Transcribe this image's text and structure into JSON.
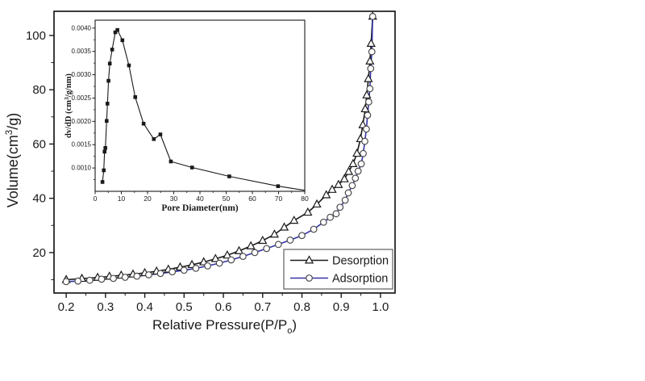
{
  "colors": {
    "background": "#ffffff",
    "axis": "#1a1a1a",
    "text": "#1a1a1a",
    "desorption_line": "#1a1a1a",
    "adsorption_line": "#3333a6",
    "marker_fill": "#ffffff",
    "circle_marker_edge": "#4a4a4a",
    "triangle_marker_edge": "#1a1a1a",
    "inset_series": "#1a1a1a",
    "legend_border": "#6b6b6b"
  },
  "chart_data": [
    {
      "type": "line",
      "role": "main-isotherm",
      "title": "",
      "xlabel": "Relative Pressure(P/Po)",
      "xlabel_parts": {
        "pre": "Relative Pressure(P/P",
        "sub": "o",
        "post": ")"
      },
      "ylabel": "Volume(cm3/g)",
      "ylabel_parts": {
        "pre": "Volume(cm",
        "sup": "3",
        "post": "/g)"
      },
      "xlim": [
        0.169,
        1.037
      ],
      "ylim": [
        5.1,
        108.9
      ],
      "xticks": [
        0.2,
        0.3,
        0.4,
        0.5,
        0.6,
        0.7,
        0.8,
        0.9,
        1.0
      ],
      "xtick_labels": [
        "0.2",
        "0.3",
        "0.4",
        "0.5",
        "0.6",
        "0.7",
        "0.8",
        "0.9",
        "1.0"
      ],
      "x_minor_ticks": [
        0.25,
        0.35,
        0.45,
        0.55,
        0.65,
        0.75,
        0.85,
        0.95
      ],
      "yticks": [
        20,
        40,
        60,
        80,
        100
      ],
      "ytick_labels": [
        "20",
        "40",
        "60",
        "80",
        "100"
      ],
      "y_minor_ticks": [
        10,
        30,
        50,
        70,
        90
      ],
      "grid": false,
      "legend": {
        "position": "bottom-right",
        "entries": [
          {
            "label": "Desorption",
            "marker": "triangle",
            "color": "#1a1a1a",
            "marker_edge": "#1a1a1a"
          },
          {
            "label": "Adsorption",
            "marker": "circle",
            "color": "#3333a6",
            "marker_edge": "#4a4a4a"
          }
        ]
      },
      "series": [
        {
          "name": "Desorption",
          "marker": "triangle",
          "color": "#1a1a1a",
          "marker_edge": "#1a1a1a",
          "points": [
            [
              0.2,
              10.0
            ],
            [
              0.24,
              10.4
            ],
            [
              0.28,
              10.8
            ],
            [
              0.31,
              11.2
            ],
            [
              0.34,
              11.6
            ],
            [
              0.37,
              12.0
            ],
            [
              0.4,
              12.5
            ],
            [
              0.43,
              13.1
            ],
            [
              0.46,
              13.8
            ],
            [
              0.49,
              14.6
            ],
            [
              0.52,
              15.5
            ],
            [
              0.55,
              16.5
            ],
            [
              0.58,
              17.7
            ],
            [
              0.61,
              19.0
            ],
            [
              0.64,
              20.6
            ],
            [
              0.67,
              22.4
            ],
            [
              0.7,
              24.4
            ],
            [
              0.73,
              26.7
            ],
            [
              0.755,
              29.3
            ],
            [
              0.78,
              31.8
            ],
            [
              0.815,
              34.8
            ],
            [
              0.838,
              37.8
            ],
            [
              0.862,
              41.2
            ],
            [
              0.877,
              43.2
            ],
            [
              0.893,
              45.0
            ],
            [
              0.908,
              47.1
            ],
            [
              0.919,
              49.8
            ],
            [
              0.93,
              52.7
            ],
            [
              0.94,
              56.5
            ],
            [
              0.949,
              61.9
            ],
            [
              0.955,
              67.0
            ],
            [
              0.961,
              72.9
            ],
            [
              0.965,
              78.0
            ],
            [
              0.969,
              84.0
            ],
            [
              0.973,
              90.5
            ],
            [
              0.976,
              97.0
            ],
            [
              0.98,
              107.0
            ]
          ]
        },
        {
          "name": "Adsorption",
          "marker": "circle",
          "color": "#3333a6",
          "marker_edge": "#4a4a4a",
          "points": [
            [
              0.2,
              9.3
            ],
            [
              0.23,
              9.5
            ],
            [
              0.26,
              9.8
            ],
            [
              0.29,
              10.2
            ],
            [
              0.32,
              10.5
            ],
            [
              0.35,
              10.9
            ],
            [
              0.38,
              11.3
            ],
            [
              0.41,
              11.8
            ],
            [
              0.44,
              12.3
            ],
            [
              0.47,
              12.9
            ],
            [
              0.5,
              13.5
            ],
            [
              0.53,
              14.2
            ],
            [
              0.56,
              15.1
            ],
            [
              0.59,
              16.1
            ],
            [
              0.62,
              17.3
            ],
            [
              0.65,
              18.6
            ],
            [
              0.68,
              20.0
            ],
            [
              0.71,
              21.5
            ],
            [
              0.74,
              23.0
            ],
            [
              0.77,
              24.6
            ],
            [
              0.8,
              26.3
            ],
            [
              0.83,
              28.6
            ],
            [
              0.855,
              31.2
            ],
            [
              0.872,
              33.0
            ],
            [
              0.887,
              34.3
            ],
            [
              0.897,
              36.7
            ],
            [
              0.91,
              39.3
            ],
            [
              0.918,
              42.0
            ],
            [
              0.928,
              44.7
            ],
            [
              0.936,
              47.4
            ],
            [
              0.943,
              50.0
            ],
            [
              0.951,
              52.7
            ],
            [
              0.956,
              56.5
            ],
            [
              0.96,
              61.0
            ],
            [
              0.964,
              65.5
            ],
            [
              0.967,
              70.6
            ],
            [
              0.97,
              75.5
            ],
            [
              0.973,
              80.4
            ],
            [
              0.975,
              87.8
            ],
            [
              0.978,
              94.0
            ],
            [
              0.98,
              107.0
            ]
          ]
        }
      ]
    },
    {
      "type": "line",
      "role": "inset-pore-size-distribution",
      "title": "",
      "xlabel": "Pore Diameter(nm)",
      "ylabel": "dv/dD (cm3/g/nm)",
      "ylabel_parts": {
        "pre": "dv/dD (cm",
        "sup": "3",
        "post": "/g/nm)"
      },
      "xlim": [
        0,
        80
      ],
      "ylim": [
        0.0005,
        0.00417
      ],
      "xticks": [
        0,
        10,
        20,
        30,
        40,
        50,
        60,
        70,
        80
      ],
      "xtick_labels": [
        "0",
        "10",
        "20",
        "30",
        "40",
        "50",
        "60",
        "70",
        "80"
      ],
      "x_minor_ticks": [
        5,
        15,
        25,
        35,
        45,
        55,
        65,
        75
      ],
      "yticks": [
        0.001,
        0.0015,
        0.002,
        0.0025,
        0.003,
        0.0035,
        0.004
      ],
      "ytick_labels": [
        "0.0010",
        "0.0015",
        "0.0020",
        "0.0025",
        "0.0030",
        "0.0035",
        "0.0040"
      ],
      "y_minor_ticks": [
        0.00075,
        0.00125,
        0.00175,
        0.00225,
        0.00275,
        0.00325,
        0.00375
      ],
      "grid": false,
      "series": [
        {
          "name": "dv/dD",
          "marker": "square",
          "color": "#1a1a1a",
          "marker_edge": "#1a1a1a",
          "points": [
            [
              2.8,
              0.0007
            ],
            [
              3.3,
              0.00095
            ],
            [
              3.6,
              0.00135
            ],
            [
              3.9,
              0.00143
            ],
            [
              4.4,
              0.00201
            ],
            [
              4.7,
              0.00238
            ],
            [
              5.1,
              0.00287
            ],
            [
              5.6,
              0.00324
            ],
            [
              6.5,
              0.00354
            ],
            [
              7.7,
              0.00391
            ],
            [
              8.5,
              0.00396
            ],
            [
              10.4,
              0.00374
            ],
            [
              12.9,
              0.0032
            ],
            [
              15.3,
              0.00252
            ],
            [
              18.5,
              0.00195
            ],
            [
              22.4,
              0.00162
            ],
            [
              24.9,
              0.00172
            ],
            [
              28.9,
              0.00114
            ],
            [
              37.0,
              0.00101
            ],
            [
              51.2,
              0.00082
            ],
            [
              69.8,
              0.00061
            ]
          ],
          "line_tail": [
            80,
            0.00052
          ]
        }
      ]
    }
  ]
}
